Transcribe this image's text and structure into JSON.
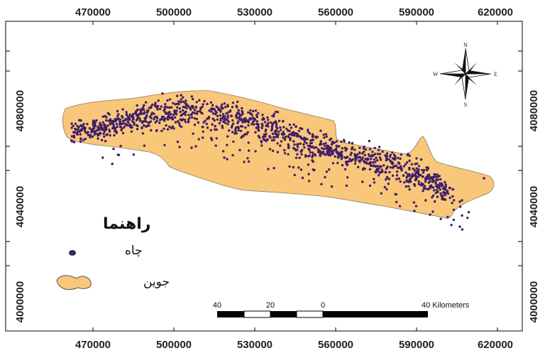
{
  "map": {
    "x_ticks": [
      "470000",
      "500000",
      "530000",
      "560000",
      "590000",
      "620000"
    ],
    "y_ticks": [
      "4080000",
      "4040000",
      "4000000"
    ]
  },
  "north_arrow": {
    "n": "N",
    "s": "S",
    "e": "E",
    "w": "W"
  },
  "legend": {
    "title": "راهنما",
    "items": [
      {
        "label": "چاه",
        "symbol": "point",
        "color": "#4a2070"
      },
      {
        "label": "جوین",
        "symbol": "polygon",
        "color": "#f9c77a"
      }
    ]
  },
  "scale_bar": {
    "labels": [
      "40",
      "20",
      "0",
      "40 Kilometers"
    ]
  },
  "colors": {
    "study_area": "#f9c77a",
    "well_point": "#3e1e68",
    "frame": "#000000"
  }
}
